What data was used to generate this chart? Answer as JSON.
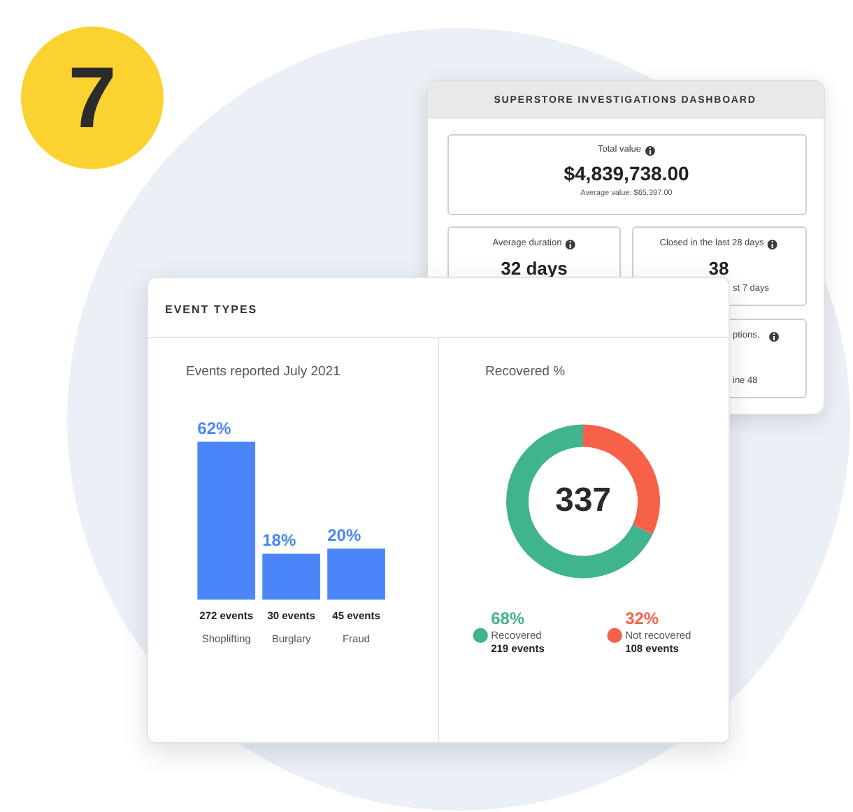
{
  "chart_data": [
    {
      "type": "other",
      "title": "7"
    },
    {
      "type": "other",
      "title": "SUPERSTORE INVESTIGATIONS DASHBOARD",
      "annotations": [
        "Total value",
        "$4,839,738.00",
        "Average value: $65,397.00",
        "Average duration",
        "32 days",
        "Closed in the last 28 days",
        "38",
        "st 7 days",
        "ptions.",
        "ine 48"
      ]
    },
    {
      "type": "other",
      "title": "EVENT TYPES"
    },
    {
      "type": "bar",
      "title": "Events reported July 2021",
      "categories": [
        "Shoplifting",
        "Burglary",
        "Fraud"
      ],
      "values": [
        62,
        18,
        20
      ],
      "value_labels": [
        "62%",
        "18%",
        "20%"
      ],
      "color": "#4a86f7",
      "annotations": [
        "272 events",
        "30 events",
        "45 events"
      ]
    },
    {
      "type": "donut",
      "title": "Recovered %",
      "categories": [
        "Recovered",
        "Not recovered"
      ],
      "values": [
        68,
        32
      ],
      "value_labels": [
        "68%",
        "32%"
      ],
      "colors": [
        "#40b48e",
        "#f7614a"
      ],
      "legend": "bottom",
      "annotations": [
        "337",
        "219 events",
        "108 events"
      ]
    }
  ]
}
